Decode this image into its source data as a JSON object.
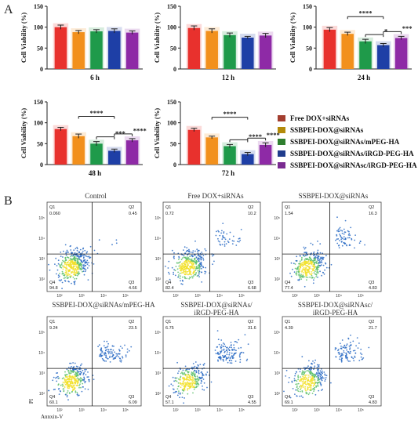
{
  "panels": {
    "a_letter": "A",
    "b_letter": "B"
  },
  "colors": {
    "series": [
      "#e8312d",
      "#f2901c",
      "#1f9a4a",
      "#1e3fa6",
      "#8e2aa6"
    ],
    "legend_swatches": [
      "#a33e2f",
      "#b38a0a",
      "#2f7f2f",
      "#1f3c8c",
      "#7a2b91"
    ],
    "flow_low": "#2a6bc4",
    "flow_high": "#f2e02a",
    "flow_bg_blur": "#c93ad0"
  },
  "chart_data": [
    {
      "type": "bar",
      "title": "",
      "xlabel": "6 h",
      "ylabel": "Cell Viability (%)",
      "yticks": [
        0,
        50,
        100,
        150
      ],
      "ylim": [
        0,
        150
      ],
      "values": [
        100,
        88,
        90,
        91,
        87
      ],
      "errors": [
        5,
        4,
        4,
        5,
        4
      ],
      "significance": []
    },
    {
      "type": "bar",
      "title": "",
      "xlabel": "12 h",
      "ylabel": "Cell Viability (%)",
      "yticks": [
        0,
        50,
        100,
        150
      ],
      "ylim": [
        0,
        150
      ],
      "values": [
        98,
        91,
        81,
        75,
        80
      ],
      "errors": [
        5,
        5,
        5,
        3,
        5
      ],
      "significance": []
    },
    {
      "type": "bar",
      "title": "",
      "xlabel": "24 h",
      "ylabel": "Cell Viability (%)",
      "yticks": [
        0,
        50,
        100,
        150
      ],
      "ylim": [
        0,
        150
      ],
      "values": [
        94,
        84,
        66,
        57,
        74
      ],
      "errors": [
        5,
        4,
        5,
        4,
        4
      ],
      "significance": [
        {
          "from": 1,
          "to": 3,
          "label": "****",
          "level": 0
        },
        {
          "from": 2,
          "to": 3,
          "label": "*",
          "level": 1
        },
        {
          "from": 3,
          "to": 4,
          "label": "***",
          "level": 1
        }
      ]
    },
    {
      "type": "bar",
      "title": "",
      "xlabel": "48 h",
      "ylabel": "Cell Viability (%)",
      "yticks": [
        0,
        50,
        100,
        150
      ],
      "ylim": [
        0,
        150
      ],
      "values": [
        85,
        68,
        50,
        33,
        58
      ],
      "errors": [
        4,
        5,
        5,
        4,
        4
      ],
      "significance": [
        {
          "from": 1,
          "to": 3,
          "label": "****",
          "level": 0
        },
        {
          "from": 2,
          "to": 3,
          "label": "***",
          "level": 1
        },
        {
          "from": 3,
          "to": 4,
          "label": "****",
          "level": 1
        }
      ]
    },
    {
      "type": "bar",
      "title": "",
      "xlabel": "72 h",
      "ylabel": "Cell Viability (%)",
      "yticks": [
        0,
        50,
        100,
        150
      ],
      "ylim": [
        0,
        150
      ],
      "values": [
        83,
        65,
        44,
        25,
        47
      ],
      "errors": [
        4,
        3,
        4,
        4,
        5
      ],
      "significance": [
        {
          "from": 1,
          "to": 3,
          "label": "****",
          "level": 0
        },
        {
          "from": 2,
          "to": 3,
          "label": "****",
          "level": 1
        },
        {
          "from": 3,
          "to": 4,
          "label": "****",
          "level": 1
        }
      ]
    }
  ],
  "legend": {
    "items": [
      "Free DOX+siRNAs",
      "SSBPEI-DOX@siRNAs",
      "SSBPEI-DOX@siRNAs/mPEG-HA",
      "SSBPEI-DOX@siRNAs/iRGD-PEG-HA",
      "SSBPEI-DOX@siRNAsc/iRGD-PEG-HA"
    ]
  },
  "flow": {
    "y_axis_label": "PI",
    "x_axis_label": "Annxin-V",
    "tick_labels": [
      "10²",
      "10³",
      "10⁴",
      "10⁵"
    ],
    "plots": [
      {
        "title": "Control",
        "q1_name": "Q1",
        "q1": "0.060",
        "q2_name": "Q2",
        "q2": "0.45",
        "q3_name": "Q3",
        "q3": "4.66",
        "q4_name": "Q4",
        "q4": "94.8"
      },
      {
        "title": "Free DOX+siRNAs",
        "q1_name": "Q1",
        "q1": "0.72",
        "q2_name": "Q2",
        "q2": "10.2",
        "q3_name": "Q3",
        "q3": "6.68",
        "q4_name": "Q4",
        "q4": "82.4"
      },
      {
        "title": "SSBPEI-DOX@siRNAs",
        "q1_name": "Q1",
        "q1": "1.54",
        "q2_name": "Q2",
        "q2": "16.3",
        "q3_name": "Q3",
        "q3": "4.83",
        "q4_name": "Q4",
        "q4": "77.4"
      },
      {
        "title": "SSBPEI-DOX@siRNAs/mPEG-HA",
        "q1_name": "Q1",
        "q1": "9.24",
        "q2_name": "Q2",
        "q2": "23.5",
        "q3_name": "Q3",
        "q3": "6.09",
        "q4_name": "Q4",
        "q4": "60.1"
      },
      {
        "title_line1": "SSBPEI-DOX@siRNAs/",
        "title_line2": "iRGD-PEG-HA",
        "q1_name": "Q1",
        "q1": "6.75",
        "q2_name": "Q2",
        "q2": "31.6",
        "q3_name": "Q3",
        "q3": "4.55",
        "q4_name": "Q4",
        "q4": "57.1"
      },
      {
        "title_line1": "SSBPEI-DOX@siRNAsc/",
        "title_line2": "iRGD-PEG-HA",
        "q1_name": "Q1",
        "q1": "4.39",
        "q2_name": "Q2",
        "q2": "21.7",
        "q3_name": "Q3",
        "q3": "4.83",
        "q4_name": "Q4",
        "q4": "69.1"
      }
    ]
  }
}
